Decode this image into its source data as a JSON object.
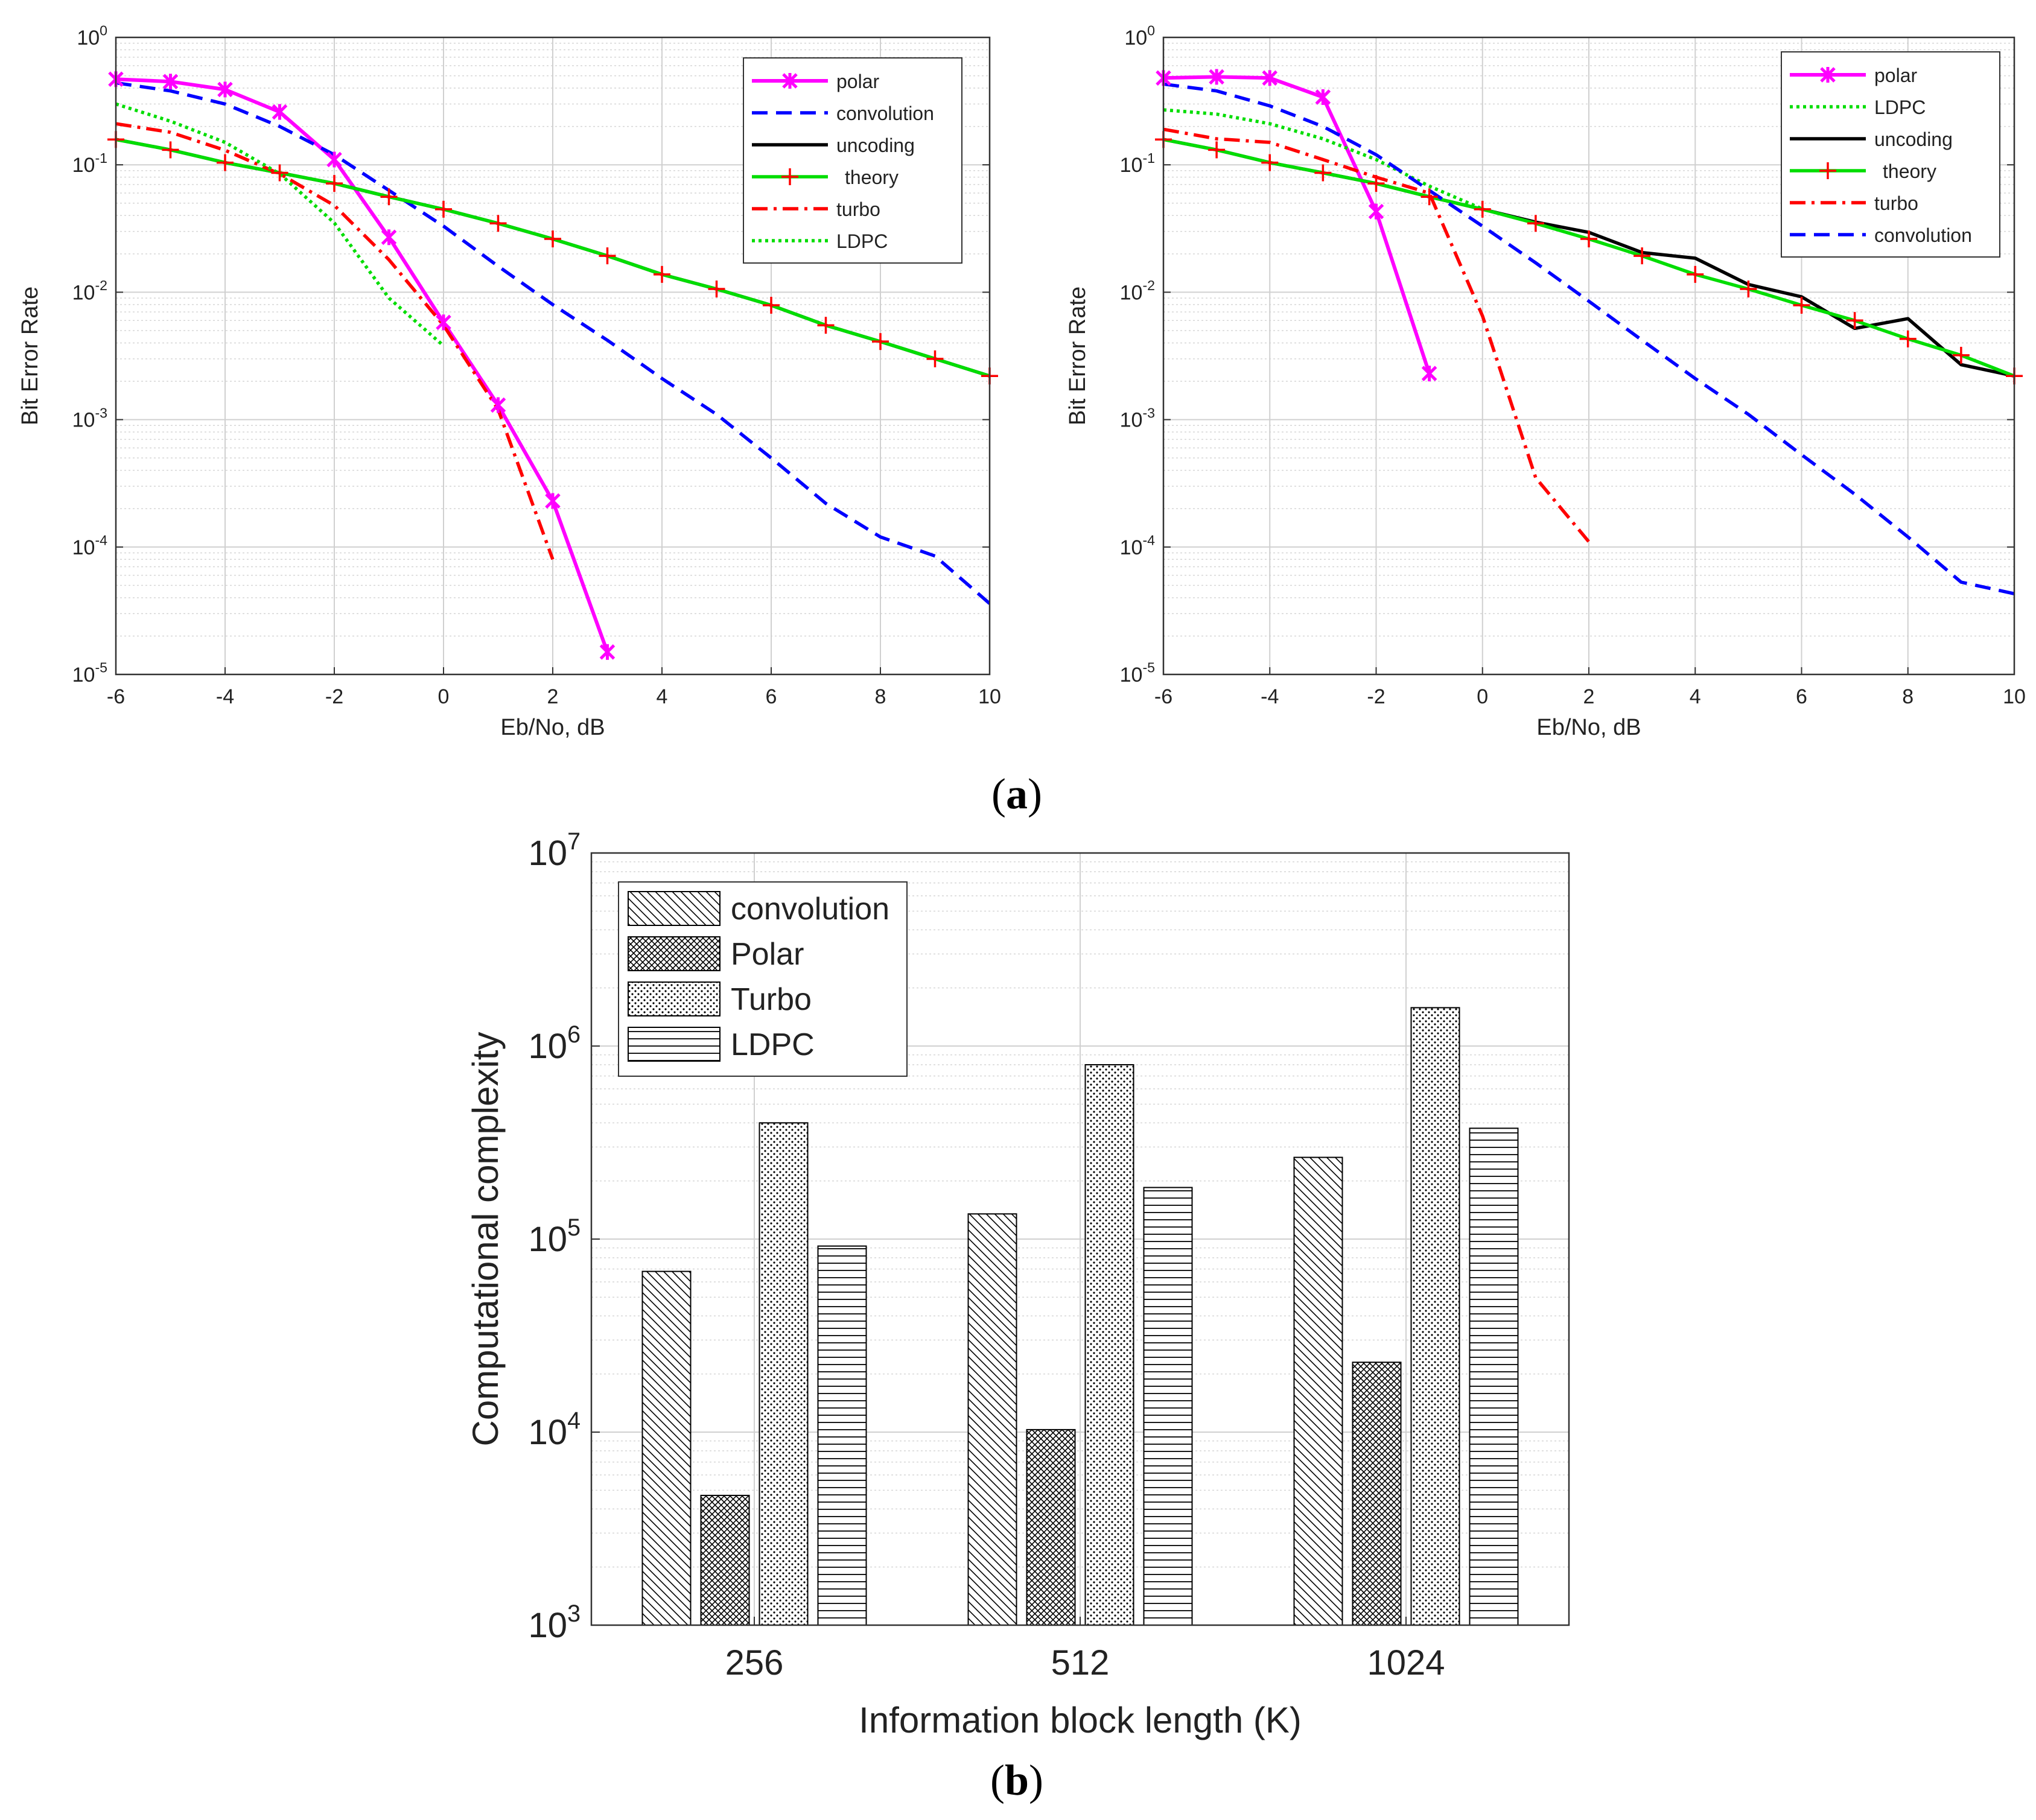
{
  "chart_data": [
    {
      "type": "line",
      "id": "ber-left",
      "xlabel": "Eb/No, dB",
      "ylabel": "Bit Error Rate",
      "xlim": [
        -6,
        10
      ],
      "ylim": [
        1e-05,
        1
      ],
      "yscale": "log",
      "xticks": [
        -6,
        -4,
        -2,
        0,
        2,
        4,
        6,
        8,
        10
      ],
      "yticks": [
        {
          "base": "10",
          "exp": "0",
          "value": 1
        },
        {
          "base": "10",
          "exp": "-1",
          "value": 0.1
        },
        {
          "base": "10",
          "exp": "-2",
          "value": 0.01
        },
        {
          "base": "10",
          "exp": "-3",
          "value": 0.001
        },
        {
          "base": "10",
          "exp": "-4",
          "value": 0.0001
        },
        {
          "base": "10",
          "exp": "-5",
          "value": 1e-05
        }
      ],
      "grid": true,
      "legend_position": "top-right",
      "series": [
        {
          "name": "polar",
          "color": "#ff00ff",
          "style": "solid",
          "marker": "star",
          "x": [
            -6,
            -5,
            -4,
            -3,
            -2,
            -1,
            0,
            1,
            2,
            3
          ],
          "y": [
            0.47,
            0.45,
            0.39,
            0.26,
            0.11,
            0.027,
            0.0058,
            0.0013,
            0.00023,
            1.5e-05
          ]
        },
        {
          "name": "convolution",
          "color": "#0000ff",
          "style": "dashed",
          "marker": "none",
          "x": [
            -6,
            -5,
            -4,
            -3,
            -2,
            -1,
            0,
            1,
            2,
            3,
            4,
            5,
            6,
            7,
            8,
            9,
            10
          ],
          "y": [
            0.44,
            0.38,
            0.3,
            0.2,
            0.12,
            0.063,
            0.033,
            0.016,
            0.008,
            0.0042,
            0.0021,
            0.0011,
            0.0005,
            0.00022,
            0.00012,
            8.5e-05,
            3.6e-05
          ]
        },
        {
          "name": "uncoding",
          "color": "#000000",
          "style": "solid",
          "marker": "none",
          "x": [
            -6,
            -5,
            -4,
            -3,
            -2,
            -1,
            0,
            1,
            2,
            3,
            4,
            5,
            6,
            7,
            8,
            9,
            10
          ],
          "y": [
            0.158,
            0.131,
            0.104,
            0.0865,
            0.0714,
            0.0561,
            0.0448,
            0.0347,
            0.0262,
            0.0193,
            0.0138,
            0.0106,
            0.0079,
            0.0055,
            0.0041,
            0.003,
            0.0022
          ]
        },
        {
          "name": "theory",
          "color": "#00dd00",
          "style": "solid",
          "marker": "plus",
          "marker_color": "#ff0000",
          "x": [
            -6,
            -5,
            -4,
            -3,
            -2,
            -1,
            0,
            1,
            2,
            3,
            4,
            5,
            6,
            7,
            8,
            9,
            10
          ],
          "y": [
            0.158,
            0.131,
            0.104,
            0.0865,
            0.0714,
            0.0561,
            0.0448,
            0.0347,
            0.0262,
            0.0193,
            0.0138,
            0.0106,
            0.0079,
            0.0055,
            0.0041,
            0.003,
            0.0022
          ]
        },
        {
          "name": "turbo",
          "color": "#ff0000",
          "style": "dashdot",
          "marker": "none",
          "x": [
            -6,
            -5,
            -4,
            -3,
            -2,
            -1,
            0,
            1,
            2
          ],
          "y": [
            0.21,
            0.18,
            0.13,
            0.085,
            0.048,
            0.018,
            0.0055,
            0.0012,
            8e-05
          ]
        },
        {
          "name": "LDPC",
          "color": "#00dd00",
          "style": "dotted",
          "marker": "none",
          "x": [
            -6,
            -5,
            -4,
            -3,
            -2,
            -1,
            0
          ],
          "y": [
            0.3,
            0.22,
            0.15,
            0.085,
            0.035,
            0.009,
            0.0038
          ]
        }
      ]
    },
    {
      "type": "line",
      "id": "ber-right",
      "xlabel": "Eb/No, dB",
      "ylabel": "Bit Error Rate",
      "xlim": [
        -6,
        10
      ],
      "ylim": [
        1e-05,
        1
      ],
      "yscale": "log",
      "xticks": [
        -6,
        -4,
        -2,
        0,
        2,
        4,
        6,
        8,
        10
      ],
      "yticks": [
        {
          "base": "10",
          "exp": "0",
          "value": 1
        },
        {
          "base": "10",
          "exp": "-1",
          "value": 0.1
        },
        {
          "base": "10",
          "exp": "-2",
          "value": 0.01
        },
        {
          "base": "10",
          "exp": "-3",
          "value": 0.001
        },
        {
          "base": "10",
          "exp": "-4",
          "value": 0.0001
        },
        {
          "base": "10",
          "exp": "-5",
          "value": 1e-05
        }
      ],
      "grid": true,
      "legend_position": "top-right",
      "series": [
        {
          "name": "polar",
          "color": "#ff00ff",
          "style": "solid",
          "marker": "star",
          "x": [
            -6,
            -5,
            -4,
            -3,
            -2,
            -1
          ],
          "y": [
            0.48,
            0.49,
            0.48,
            0.34,
            0.043,
            0.0023
          ]
        },
        {
          "name": "LDPC",
          "color": "#00dd00",
          "style": "dotted",
          "marker": "none",
          "x": [
            -6,
            -5,
            -4,
            -3,
            -2,
            -1,
            0
          ],
          "y": [
            0.27,
            0.25,
            0.21,
            0.16,
            0.11,
            0.068,
            0.045
          ]
        },
        {
          "name": "uncoding",
          "color": "#000000",
          "style": "solid",
          "marker": "none",
          "x": [
            -6,
            -5,
            -4,
            -3,
            -2,
            -1,
            0,
            1,
            2,
            3,
            4,
            5,
            6,
            7,
            8,
            9,
            10
          ],
          "y": [
            0.158,
            0.131,
            0.104,
            0.0865,
            0.0714,
            0.0561,
            0.0448,
            0.0355,
            0.0295,
            0.0205,
            0.0185,
            0.0115,
            0.0092,
            0.0052,
            0.0062,
            0.0027,
            0.0022
          ]
        },
        {
          "name": "theory",
          "color": "#00dd00",
          "style": "solid",
          "marker": "plus",
          "marker_color": "#ff0000",
          "x": [
            -6,
            -5,
            -4,
            -3,
            -2,
            -1,
            0,
            1,
            2,
            3,
            4,
            5,
            6,
            7,
            8,
            9,
            10
          ],
          "y": [
            0.158,
            0.131,
            0.104,
            0.0865,
            0.0714,
            0.0561,
            0.0448,
            0.0347,
            0.0262,
            0.0193,
            0.0138,
            0.0106,
            0.0079,
            0.006,
            0.0043,
            0.0032,
            0.0022
          ]
        },
        {
          "name": "turbo",
          "color": "#ff0000",
          "style": "dashdot",
          "marker": "none",
          "x": [
            -6,
            -5,
            -4,
            -3,
            -2,
            -1,
            0,
            1,
            2
          ],
          "y": [
            0.19,
            0.16,
            0.15,
            0.11,
            0.08,
            0.06,
            0.0065,
            0.00035,
            0.00011
          ]
        },
        {
          "name": "convolution",
          "color": "#0000ff",
          "style": "dashed",
          "marker": "none",
          "x": [
            -6,
            -5,
            -4,
            -3,
            -2,
            -1,
            0,
            1,
            2,
            3,
            4,
            5,
            6,
            7,
            8,
            9,
            10
          ],
          "y": [
            0.43,
            0.38,
            0.29,
            0.2,
            0.12,
            0.063,
            0.033,
            0.017,
            0.0085,
            0.0042,
            0.0021,
            0.0011,
            0.00053,
            0.00026,
            0.00012,
            5.3e-05,
            4.3e-05
          ]
        }
      ]
    },
    {
      "type": "bar",
      "id": "complexity",
      "xlabel": "Information block length (K)",
      "ylabel": "Computational complexity",
      "yscale": "log",
      "ylim": [
        1000,
        10000000
      ],
      "categories": [
        "256",
        "512",
        "1024"
      ],
      "yticks": [
        {
          "base": "10",
          "exp": "3",
          "value": 1000
        },
        {
          "base": "10",
          "exp": "4",
          "value": 10000
        },
        {
          "base": "10",
          "exp": "5",
          "value": 100000
        },
        {
          "base": "10",
          "exp": "6",
          "value": 1000000
        },
        {
          "base": "10",
          "exp": "7",
          "value": 10000000
        }
      ],
      "grid": true,
      "legend_position": "top-left",
      "series": [
        {
          "name": "convolution",
          "pattern": "diag",
          "values": [
            68000,
            135000,
            265000
          ]
        },
        {
          "name": "Polar",
          "pattern": "cross",
          "values": [
            4700,
            10300,
            23000
          ]
        },
        {
          "name": "Turbo",
          "pattern": "dots",
          "values": [
            400000,
            800000,
            1580000
          ]
        },
        {
          "name": "LDPC",
          "pattern": "hlines",
          "values": [
            92000,
            185000,
            375000
          ]
        }
      ]
    }
  ],
  "labels": {
    "panel_a_open": "(",
    "panel_a": "a",
    "panel_a_close": ")",
    "panel_b_open": "(",
    "panel_b": "b",
    "panel_b_close": ")"
  }
}
